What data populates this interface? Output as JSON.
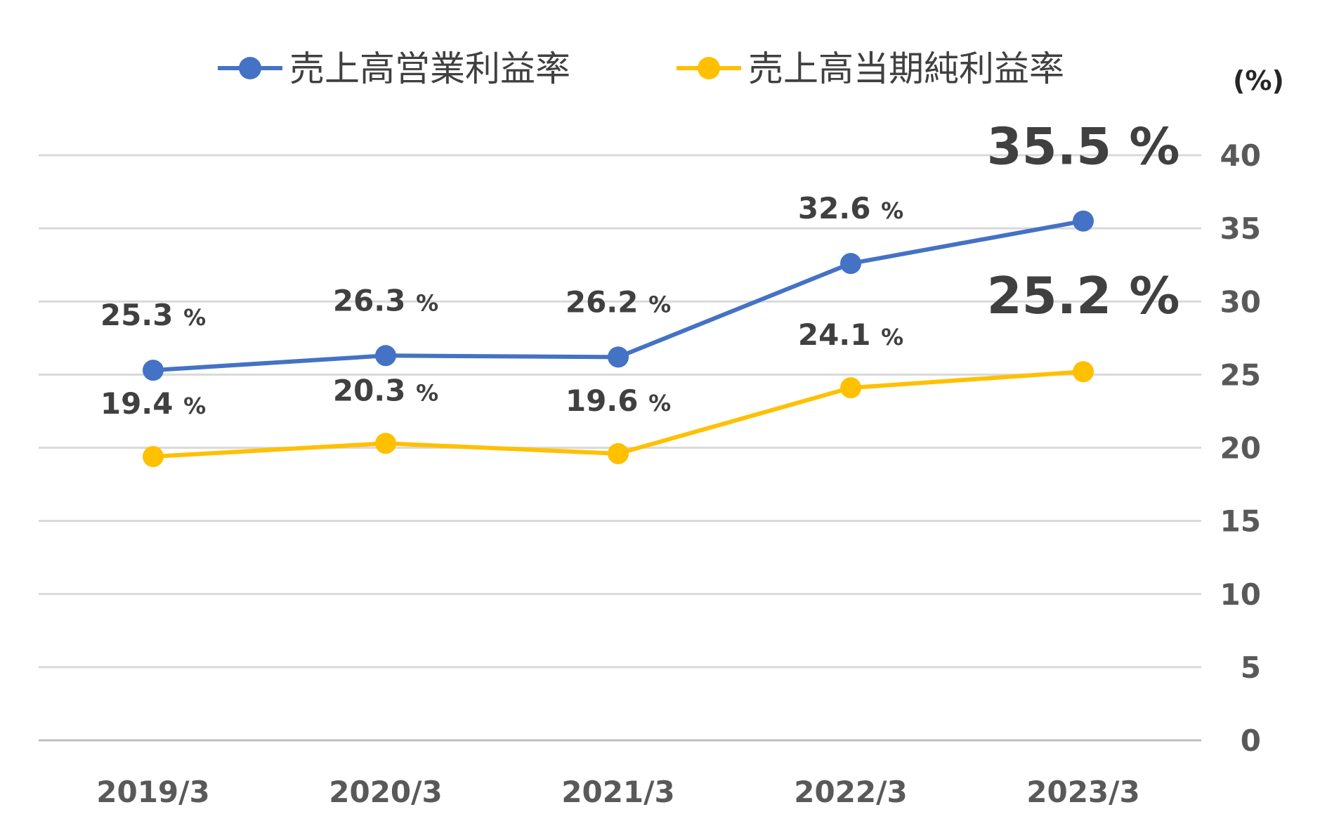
{
  "chart_data": {
    "type": "line",
    "categories": [
      "2019/3",
      "2020/3",
      "2021/3",
      "2022/3",
      "2023/3"
    ],
    "series": [
      {
        "name": "売上高営業利益率",
        "color": "#4472C4",
        "values": [
          25.3,
          26.3,
          26.2,
          32.6,
          35.5
        ],
        "labels": [
          "25.3",
          "26.3",
          "26.2",
          "32.6",
          "35.5"
        ]
      },
      {
        "name": "売上高当期純利益率",
        "color": "#FFC000",
        "values": [
          19.4,
          20.3,
          19.6,
          24.1,
          25.2
        ],
        "labels": [
          "19.4",
          "20.3",
          "19.6",
          "24.1",
          "25.2"
        ]
      }
    ],
    "label_suffix": "%",
    "y_axis": {
      "unit": "(%)",
      "position": "right",
      "ylim": [
        0,
        40
      ],
      "ticks": [
        "0",
        "5",
        "10",
        "15",
        "20",
        "25",
        "30",
        "35",
        "40"
      ]
    },
    "grid": true,
    "legend_position": "top"
  }
}
